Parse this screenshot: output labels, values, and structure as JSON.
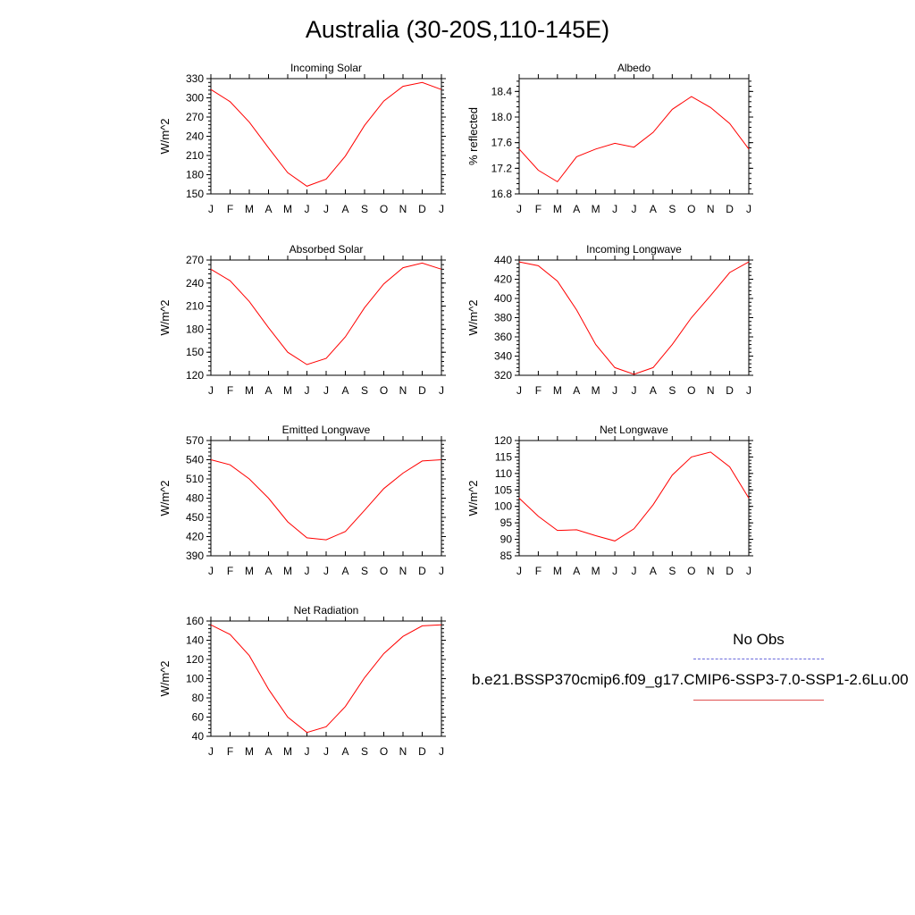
{
  "title": "Australia (30-20S,110-145E)",
  "colors": {
    "model_line": "#ff0000",
    "obs_line": "#6b6bdc",
    "axis": "#000000"
  },
  "legend": {
    "obs_label": "No Obs",
    "model_label": "b.e21.BSSP370cmip6.f09_g17.CMIP6-SSP3-7.0-SSP1-2.6Lu.00"
  },
  "chart_data": [
    {
      "type": "line",
      "title": "Incoming Solar",
      "ylabel": "W/m^2",
      "categories": [
        "J",
        "F",
        "M",
        "A",
        "M",
        "J",
        "J",
        "A",
        "S",
        "O",
        "N",
        "D",
        "J"
      ],
      "ylim": [
        150,
        330
      ],
      "yticks": [
        150,
        180,
        210,
        240,
        270,
        300,
        330
      ],
      "series": [
        {
          "values": [
            313,
            294,
            262,
            222,
            183,
            162,
            173,
            209,
            257,
            295,
            318,
            324,
            313
          ]
        }
      ]
    },
    {
      "type": "line",
      "title": "Albedo",
      "ylabel": "% reflected",
      "categories": [
        "J",
        "F",
        "M",
        "A",
        "M",
        "J",
        "J",
        "A",
        "S",
        "O",
        "N",
        "D",
        "J"
      ],
      "ylim": [
        16.8,
        18.6
      ],
      "yticks": [
        "16.8",
        "17.2",
        "17.6",
        "18.0",
        "18.4"
      ],
      "series": [
        {
          "values": [
            17.5,
            17.17,
            16.99,
            17.38,
            17.5,
            17.59,
            17.53,
            17.76,
            18.12,
            18.32,
            18.15,
            17.9,
            17.5
          ]
        }
      ]
    },
    {
      "type": "line",
      "title": "Absorbed Solar",
      "ylabel": "W/m^2",
      "categories": [
        "J",
        "F",
        "M",
        "A",
        "M",
        "J",
        "J",
        "A",
        "S",
        "O",
        "N",
        "D",
        "J"
      ],
      "ylim": [
        120,
        270
      ],
      "yticks": [
        120,
        150,
        180,
        210,
        240,
        270
      ],
      "series": [
        {
          "values": [
            258,
            243,
            216,
            182,
            150,
            134,
            142,
            170,
            208,
            239,
            260,
            266,
            258
          ]
        }
      ]
    },
    {
      "type": "line",
      "title": "Incoming Longwave",
      "ylabel": "W/m^2",
      "categories": [
        "J",
        "F",
        "M",
        "A",
        "M",
        "J",
        "J",
        "A",
        "S",
        "O",
        "N",
        "D",
        "J"
      ],
      "ylim": [
        320,
        440
      ],
      "yticks": [
        320,
        340,
        360,
        380,
        400,
        420,
        440
      ],
      "series": [
        {
          "values": [
            438,
            434,
            418,
            388,
            352,
            328,
            321,
            328,
            352,
            380,
            403,
            427,
            438
          ]
        }
      ]
    },
    {
      "type": "line",
      "title": "Emitted Longwave",
      "ylabel": "W/m^2",
      "categories": [
        "J",
        "F",
        "M",
        "A",
        "M",
        "J",
        "J",
        "A",
        "S",
        "O",
        "N",
        "D",
        "J"
      ],
      "ylim": [
        390,
        570
      ],
      "yticks": [
        390,
        420,
        450,
        480,
        510,
        540,
        570
      ],
      "series": [
        {
          "values": [
            540,
            532,
            510,
            480,
            443,
            418,
            415,
            428,
            461,
            495,
            519,
            538,
            540
          ]
        }
      ]
    },
    {
      "type": "line",
      "title": "Net Longwave",
      "ylabel": "W/m^2",
      "categories": [
        "J",
        "F",
        "M",
        "A",
        "M",
        "J",
        "J",
        "A",
        "S",
        "O",
        "N",
        "D",
        "J"
      ],
      "ylim": [
        85,
        120
      ],
      "yticks": [
        85,
        90,
        95,
        100,
        105,
        110,
        115,
        120
      ],
      "series": [
        {
          "values": [
            102.5,
            97,
            92.7,
            92.9,
            91.1,
            89.5,
            93.2,
            100.5,
            109.5,
            115,
            116.5,
            112,
            102.5
          ]
        }
      ]
    },
    {
      "type": "line",
      "title": "Net Radiation",
      "ylabel": "W/m^2",
      "categories": [
        "J",
        "F",
        "M",
        "A",
        "M",
        "J",
        "J",
        "A",
        "S",
        "O",
        "N",
        "D",
        "J"
      ],
      "ylim": [
        40,
        160
      ],
      "yticks": [
        40,
        60,
        80,
        100,
        120,
        140,
        160
      ],
      "series": [
        {
          "values": [
            156,
            146,
            124,
            89,
            60,
            44,
            50,
            71,
            101,
            126,
            144,
            155,
            156
          ]
        }
      ]
    }
  ]
}
